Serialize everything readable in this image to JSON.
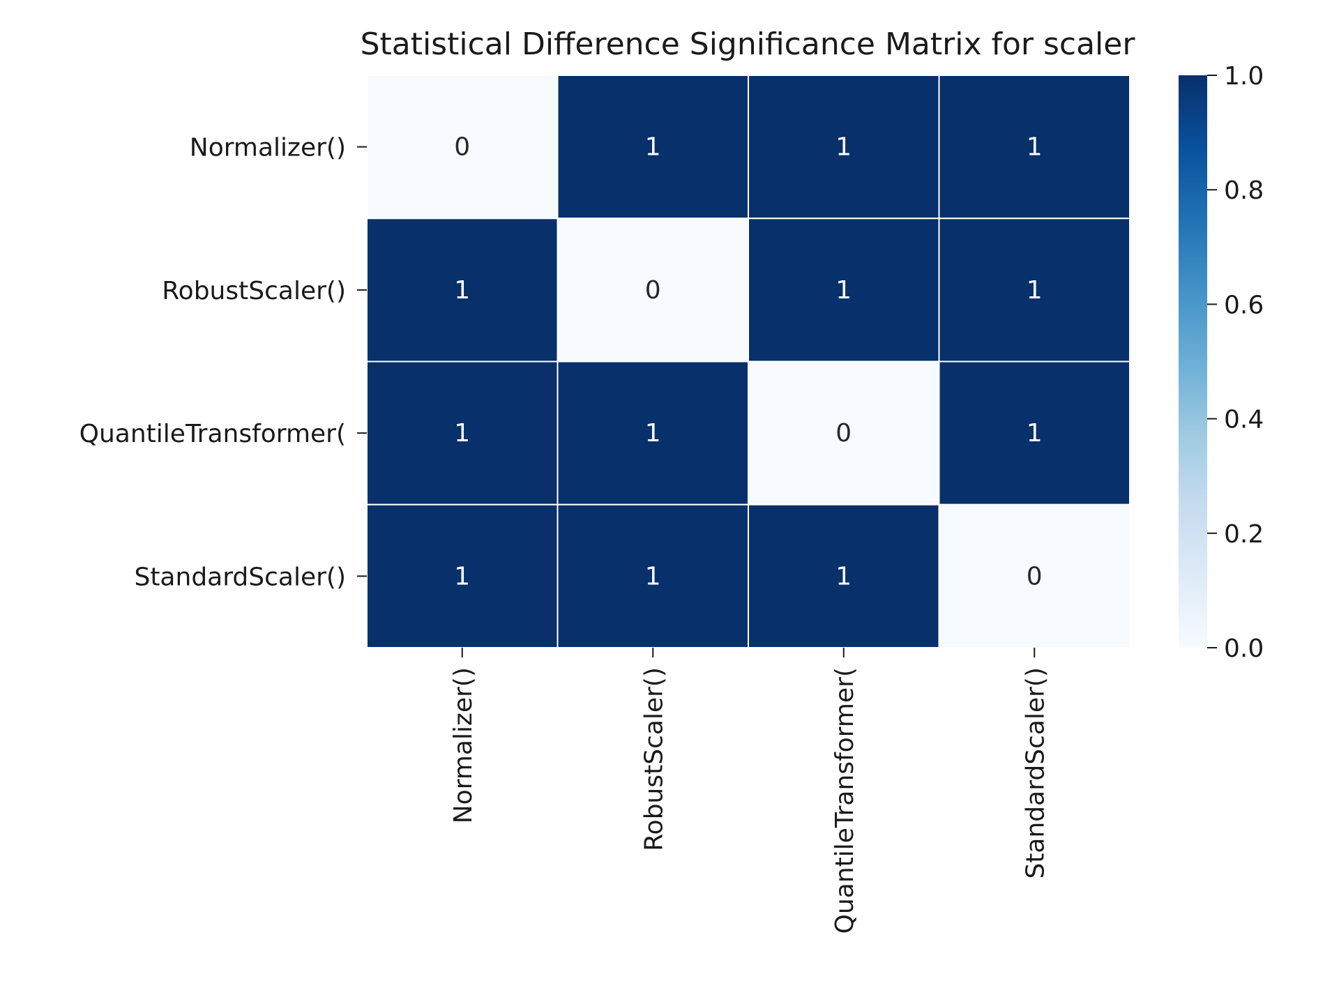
{
  "chart_data": {
    "type": "heatmap",
    "title": "Statistical Difference Significance Matrix for scaler",
    "xlabel": "",
    "ylabel": "",
    "row_labels": [
      "Normalizer()",
      "RobustScaler()",
      "QuantileTransformer(",
      "StandardScaler()"
    ],
    "col_labels": [
      "Normalizer()",
      "RobustScaler()",
      "QuantileTransformer(",
      "StandardScaler()"
    ],
    "values": [
      [
        0,
        1,
        1,
        1
      ],
      [
        1,
        0,
        1,
        1
      ],
      [
        1,
        1,
        0,
        1
      ],
      [
        1,
        1,
        1,
        0
      ]
    ],
    "colorbar": {
      "range": [
        0.0,
        1.0
      ],
      "ticks": [
        "0.0",
        "0.2",
        "0.4",
        "0.6",
        "0.8",
        "1.0"
      ],
      "colormap": "Blues"
    },
    "colors": {
      "low": "#f7fbff",
      "high": "#08306b",
      "text_on_low": "#262626",
      "text_on_high": "#ffffff",
      "cell_border": "#ffffff"
    }
  }
}
